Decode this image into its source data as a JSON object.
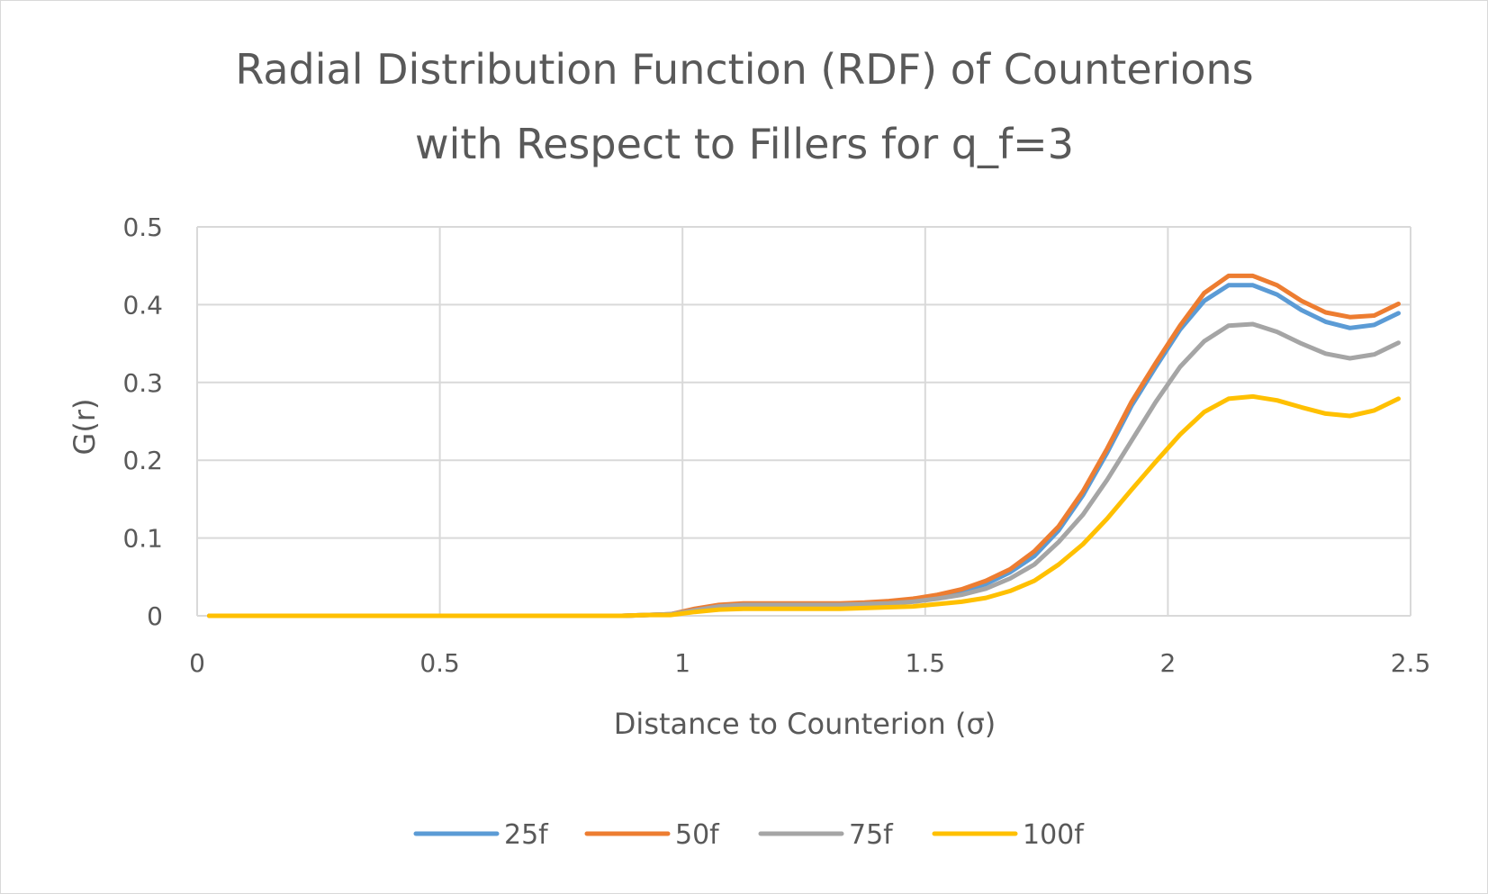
{
  "chart_data": {
    "type": "line",
    "title": [
      "Radial Distribution Function (RDF) of Counterions",
      "with Respect to Fillers for q_f=3"
    ],
    "xlabel": "Distance to Counterion (σ)",
    "ylabel": "G(r)",
    "xlim": [
      0,
      2.5
    ],
    "ylim": [
      0,
      0.5
    ],
    "x_ticks": [
      "0",
      "0.5",
      "1",
      "1.5",
      "2",
      "2.5"
    ],
    "y_ticks": [
      "0",
      "0.1",
      "0.2",
      "0.3",
      "0.4",
      "0.5"
    ],
    "grid": true,
    "legend_position": "bottom",
    "x": [
      0.025,
      0.075,
      0.125,
      0.175,
      0.225,
      0.275,
      0.325,
      0.375,
      0.425,
      0.475,
      0.525,
      0.575,
      0.625,
      0.675,
      0.725,
      0.775,
      0.825,
      0.875,
      0.925,
      0.975,
      1.025,
      1.075,
      1.125,
      1.175,
      1.225,
      1.275,
      1.325,
      1.375,
      1.425,
      1.475,
      1.525,
      1.575,
      1.625,
      1.675,
      1.725,
      1.775,
      1.825,
      1.875,
      1.925,
      1.975,
      2.025,
      2.075,
      2.125,
      2.175,
      2.225,
      2.275,
      2.325,
      2.375,
      2.425,
      2.475
    ],
    "series": [
      {
        "name": "25f",
        "color": "#5b9bd5",
        "values": [
          0,
          0,
          0,
          0,
          0,
          0,
          0,
          0,
          0,
          0,
          0,
          0,
          0,
          0,
          0,
          0,
          0,
          0,
          0.001,
          0.002,
          0.008,
          0.013,
          0.015,
          0.015,
          0.015,
          0.015,
          0.015,
          0.016,
          0.018,
          0.021,
          0.025,
          0.031,
          0.041,
          0.056,
          0.077,
          0.11,
          0.155,
          0.21,
          0.27,
          0.32,
          0.368,
          0.405,
          0.425,
          0.425,
          0.413,
          0.393,
          0.378,
          0.37,
          0.374,
          0.389
        ]
      },
      {
        "name": "50f",
        "color": "#ed7d31",
        "values": [
          0,
          0,
          0,
          0,
          0,
          0,
          0,
          0,
          0,
          0,
          0,
          0,
          0,
          0,
          0,
          0,
          0,
          0,
          0.001,
          0.002,
          0.009,
          0.014,
          0.016,
          0.016,
          0.016,
          0.016,
          0.016,
          0.017,
          0.019,
          0.022,
          0.027,
          0.034,
          0.045,
          0.06,
          0.083,
          0.115,
          0.16,
          0.215,
          0.275,
          0.325,
          0.373,
          0.415,
          0.437,
          0.437,
          0.425,
          0.405,
          0.39,
          0.384,
          0.386,
          0.401
        ]
      },
      {
        "name": "75f",
        "color": "#a5a5a5",
        "values": [
          0,
          0,
          0,
          0,
          0,
          0,
          0,
          0,
          0,
          0,
          0,
          0,
          0,
          0,
          0,
          0,
          0,
          0,
          0.001,
          0.002,
          0.007,
          0.012,
          0.014,
          0.014,
          0.014,
          0.014,
          0.014,
          0.015,
          0.016,
          0.018,
          0.022,
          0.027,
          0.035,
          0.048,
          0.066,
          0.095,
          0.13,
          0.175,
          0.225,
          0.275,
          0.32,
          0.353,
          0.373,
          0.375,
          0.365,
          0.35,
          0.337,
          0.331,
          0.336,
          0.351
        ]
      },
      {
        "name": "100f",
        "color": "#ffc000",
        "values": [
          0,
          0,
          0,
          0,
          0,
          0,
          0,
          0,
          0,
          0,
          0,
          0,
          0,
          0,
          0,
          0,
          0,
          0,
          0.001,
          0.001,
          0.005,
          0.008,
          0.009,
          0.009,
          0.009,
          0.009,
          0.009,
          0.01,
          0.011,
          0.012,
          0.015,
          0.018,
          0.023,
          0.032,
          0.045,
          0.066,
          0.092,
          0.125,
          0.162,
          0.198,
          0.233,
          0.262,
          0.279,
          0.282,
          0.277,
          0.268,
          0.26,
          0.257,
          0.264,
          0.279
        ]
      }
    ]
  }
}
